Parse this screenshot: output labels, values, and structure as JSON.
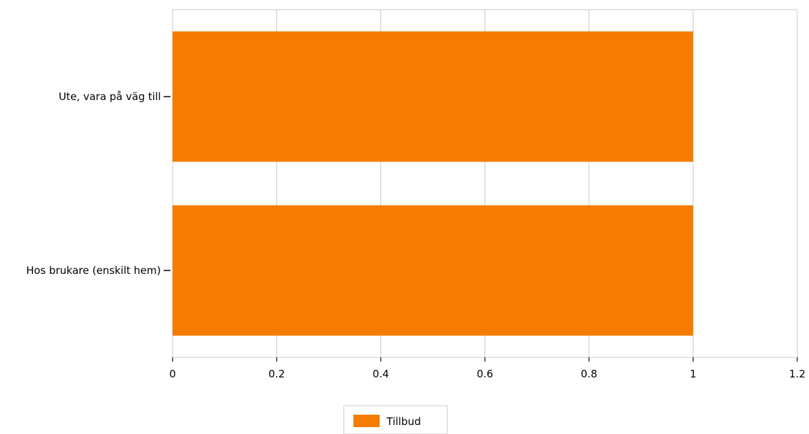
{
  "chart_data": {
    "type": "bar",
    "orientation": "horizontal",
    "categories": [
      "Ute, vara på väg till",
      "Hos brukare (enskilt hem)"
    ],
    "series": [
      {
        "name": "Tillbud",
        "values": [
          1,
          1
        ]
      }
    ],
    "xlim": [
      0,
      1.2
    ],
    "x_ticks": [
      "0",
      "0.2",
      "0.4",
      "0.6",
      "0.8",
      "1",
      "1.2"
    ],
    "grid": true,
    "legend_position": "bottom",
    "colors": {
      "bar": "#f57c00",
      "grid": "#c8c8c8",
      "axis": "#000000"
    }
  }
}
